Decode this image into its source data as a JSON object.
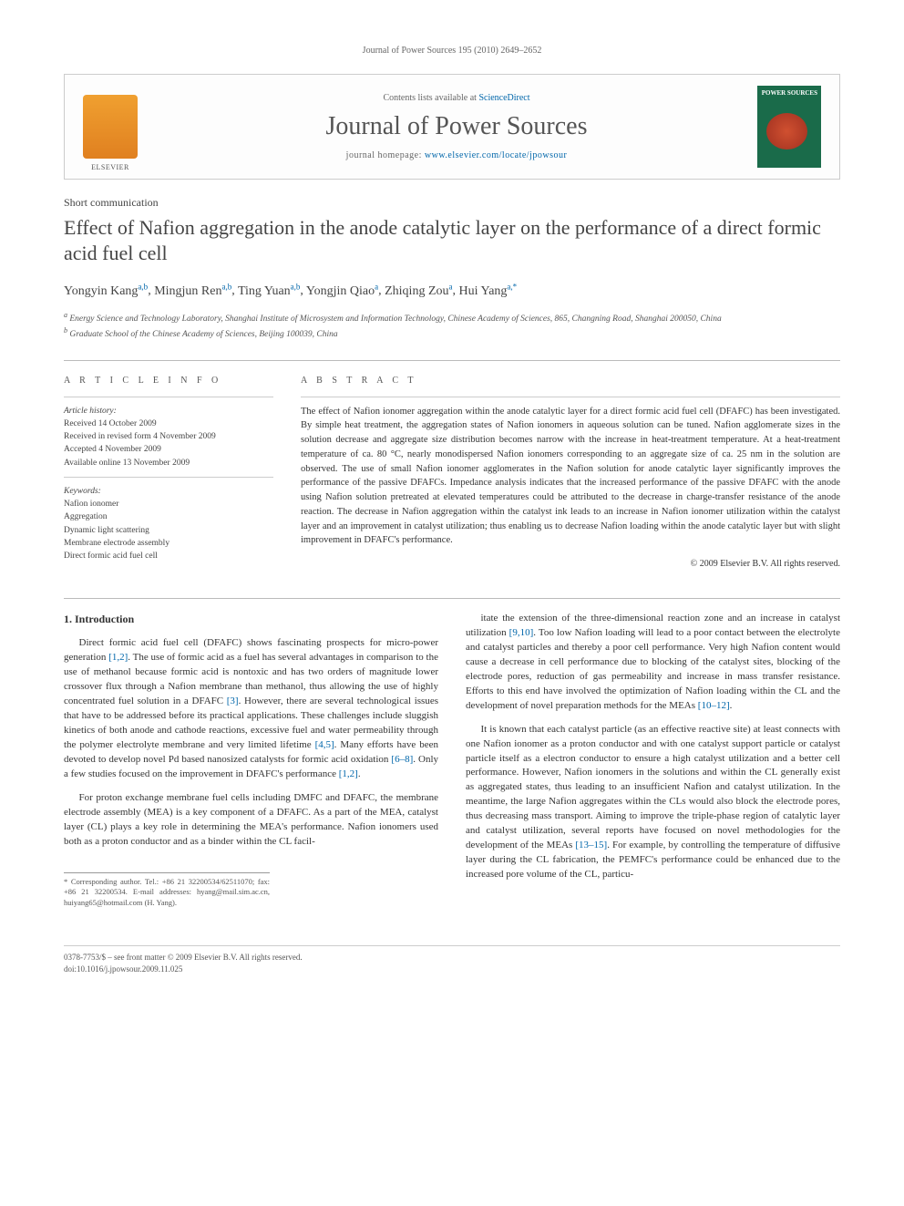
{
  "running_head": "Journal of Power Sources 195 (2010) 2649–2652",
  "box": {
    "avail_prefix": "Contents lists available at ",
    "avail_link": "ScienceDirect",
    "journal_title": "Journal of Power Sources",
    "homepage_prefix": "journal homepage: ",
    "homepage_url": "www.elsevier.com/locate/jpowsour",
    "cover_label": "POWER SOURCES"
  },
  "article_type": "Short communication",
  "title": "Effect of Nafion aggregation in the anode catalytic layer on the performance of a direct formic acid fuel cell",
  "authors_html": "Yongyin Kang",
  "authors": [
    {
      "name": "Yongyin Kang",
      "aff": "a,b"
    },
    {
      "name": "Mingjun Ren",
      "aff": "a,b"
    },
    {
      "name": "Ting Yuan",
      "aff": "a,b"
    },
    {
      "name": "Yongjin Qiao",
      "aff": "a"
    },
    {
      "name": "Zhiqing Zou",
      "aff": "a"
    },
    {
      "name": "Hui Yang",
      "aff": "a,*"
    }
  ],
  "affiliations": {
    "a": "Energy Science and Technology Laboratory, Shanghai Institute of Microsystem and Information Technology, Chinese Academy of Sciences, 865, Changning Road, Shanghai 200050, China",
    "b": "Graduate School of the Chinese Academy of Sciences, Beijing 100039, China"
  },
  "info": {
    "section1_head": "a r t i c l e   i n f o",
    "history_head": "Article history:",
    "history": [
      "Received 14 October 2009",
      "Received in revised form 4 November 2009",
      "Accepted 4 November 2009",
      "Available online 13 November 2009"
    ],
    "keywords_head": "Keywords:",
    "keywords": [
      "Nafion ionomer",
      "Aggregation",
      "Dynamic light scattering",
      "Membrane electrode assembly",
      "Direct formic acid fuel cell"
    ]
  },
  "abstract": {
    "head": "a b s t r a c t",
    "text": "The effect of Nafion ionomer aggregation within the anode catalytic layer for a direct formic acid fuel cell (DFAFC) has been investigated. By simple heat treatment, the aggregation states of Nafion ionomers in aqueous solution can be tuned. Nafion agglomerate sizes in the solution decrease and aggregate size distribution becomes narrow with the increase in heat-treatment temperature. At a heat-treatment temperature of ca. 80 °C, nearly monodispersed Nafion ionomers corresponding to an aggregate size of ca. 25 nm in the solution are observed. The use of small Nafion ionomer agglomerates in the Nafion solution for anode catalytic layer significantly improves the performance of the passive DFAFCs. Impedance analysis indicates that the increased performance of the passive DFAFC with the anode using Nafion solution pretreated at elevated temperatures could be attributed to the decrease in charge-transfer resistance of the anode reaction. The decrease in Nafion aggregation within the catalyst ink leads to an increase in Nafion ionomer utilization within the catalyst layer and an improvement in catalyst utilization; thus enabling us to decrease Nafion loading within the anode catalytic layer but with slight improvement in DFAFC's performance.",
    "copyright": "© 2009 Elsevier B.V. All rights reserved."
  },
  "body": {
    "heading": "1. Introduction",
    "left_paras": [
      "Direct formic acid fuel cell (DFAFC) shows fascinating prospects for micro-power generation [1,2]. The use of formic acid as a fuel has several advantages in comparison to the use of methanol because formic acid is nontoxic and has two orders of magnitude lower crossover flux through a Nafion membrane than methanol, thus allowing the use of highly concentrated fuel solution in a DFAFC [3]. However, there are several technological issues that have to be addressed before its practical applications. These challenges include sluggish kinetics of both anode and cathode reactions, excessive fuel and water permeability through the polymer electrolyte membrane and very limited lifetime [4,5]. Many efforts have been devoted to develop novel Pd based nanosized catalysts for formic acid oxidation [6–8]. Only a few studies focused on the improvement in DFAFC's performance [1,2].",
      "For proton exchange membrane fuel cells including DMFC and DFAFC, the membrane electrode assembly (MEA) is a key component of a DFAFC. As a part of the MEA, catalyst layer (CL) plays a key role in determining the MEA's performance. Nafion ionomers used both as a proton conductor and as a binder within the CL facil-"
    ],
    "right_paras": [
      "itate the extension of the three-dimensional reaction zone and an increase in catalyst utilization [9,10]. Too low Nafion loading will lead to a poor contact between the electrolyte and catalyst particles and thereby a poor cell performance. Very high Nafion content would cause a decrease in cell performance due to blocking of the catalyst sites, blocking of the electrode pores, reduction of gas permeability and increase in mass transfer resistance. Efforts to this end have involved the optimization of Nafion loading within the CL and the development of novel preparation methods for the MEAs [10–12].",
      "It is known that each catalyst particle (as an effective reactive site) at least connects with one Nafion ionomer as a proton conductor and with one catalyst support particle or catalyst particle itself as a electron conductor to ensure a high catalyst utilization and a better cell performance. However, Nafion ionomers in the solutions and within the CL generally exist as aggregated states, thus leading to an insufficient Nafion and catalyst utilization. In the meantime, the large Nafion aggregates within the CLs would also block the electrode pores, thus decreasing mass transport. Aiming to improve the triple-phase region of catalytic layer and catalyst utilization, several reports have focused on novel methodologies for the development of the MEAs [13–15]. For example, by controlling the temperature of diffusive layer during the CL fabrication, the PEMFC's performance could be enhanced due to the increased pore volume of the CL, particu-"
    ]
  },
  "corresponding": "* Corresponding author. Tel.: +86 21 32200534/62511070; fax: +86 21 32200534. E-mail addresses: hyang@mail.sim.ac.cn, huiyang65@hotmail.com (H. Yang).",
  "footer": {
    "line1": "0378-7753/$ – see front matter © 2009 Elsevier B.V. All rights reserved.",
    "line2": "doi:10.1016/j.jpowsour.2009.11.025"
  },
  "colors": {
    "link": "#0066aa",
    "text": "#333333",
    "rule": "#bbbbbb"
  }
}
